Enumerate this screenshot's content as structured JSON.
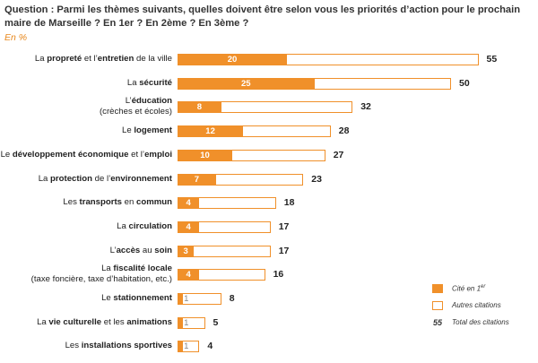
{
  "title": "Question : Parmi les thèmes suivants, quelles doivent être selon vous les priorités d’action pour le prochain maire de Marseille ? En 1er ? En 2ème ? En 3ème ?",
  "unit": "En %",
  "legend": {
    "first": "Cité en 1er",
    "other": "Autres citations",
    "total_value": "55",
    "total_label": "Total des citations"
  },
  "chart_data": {
    "type": "bar",
    "orientation": "horizontal",
    "title": "Question : Parmi les thèmes suivants, quelles doivent être selon vous les priorités d’action pour le prochain maire de Marseille ? En 1er ? En 2ème ? En 3ème ?",
    "unit": "En %",
    "legend_position": "bottom-right",
    "grid": false,
    "xlim": [
      0,
      55
    ],
    "categories": [
      {
        "pre": "La ",
        "bold1": "propreté",
        "mid": " et l’",
        "bold2": "entretien",
        "post": " de la ville",
        "sub": ""
      },
      {
        "pre": "La ",
        "bold1": "sécurité",
        "mid": "",
        "bold2": "",
        "post": "",
        "sub": ""
      },
      {
        "pre": "L’",
        "bold1": "éducation",
        "mid": "",
        "bold2": "",
        "post": "",
        "sub": "(crèches et écoles)"
      },
      {
        "pre": "Le ",
        "bold1": "logement",
        "mid": "",
        "bold2": "",
        "post": "",
        "sub": ""
      },
      {
        "pre": "Le ",
        "bold1": "développement économique",
        "mid": " et l’",
        "bold2": "emploi",
        "post": "",
        "sub": ""
      },
      {
        "pre": "La ",
        "bold1": "protection",
        "mid": " de l’",
        "bold2": "environnement",
        "post": "",
        "sub": ""
      },
      {
        "pre": "Les ",
        "bold1": "transports",
        "mid": " en ",
        "bold2": "commun",
        "post": "",
        "sub": ""
      },
      {
        "pre": "La ",
        "bold1": "circulation",
        "mid": "",
        "bold2": "",
        "post": "",
        "sub": ""
      },
      {
        "pre": "L’",
        "bold1": "accès",
        "mid": " au ",
        "bold2": "soin",
        "post": "",
        "sub": ""
      },
      {
        "pre": "La ",
        "bold1": "fiscalité locale",
        "mid": "",
        "bold2": "",
        "post": "",
        "sub": "(taxe foncière, taxe d’habitation, etc.)"
      },
      {
        "pre": "Le ",
        "bold1": "stationnement",
        "mid": "",
        "bold2": "",
        "post": "",
        "sub": ""
      },
      {
        "pre": "La ",
        "bold1": "vie culturelle",
        "mid": " et les ",
        "bold2": "animations",
        "post": "",
        "sub": ""
      },
      {
        "pre": "Les ",
        "bold1": "installations sportives",
        "mid": "",
        "bold2": "",
        "post": "",
        "sub": ""
      }
    ],
    "series": [
      {
        "name": "Cité en 1er",
        "values": [
          20,
          25,
          8,
          12,
          10,
          7,
          4,
          4,
          3,
          4,
          1,
          1,
          1
        ]
      },
      {
        "name": "Total des citations",
        "values": [
          55,
          50,
          32,
          28,
          27,
          23,
          18,
          17,
          17,
          16,
          8,
          5,
          4
        ]
      }
    ]
  }
}
